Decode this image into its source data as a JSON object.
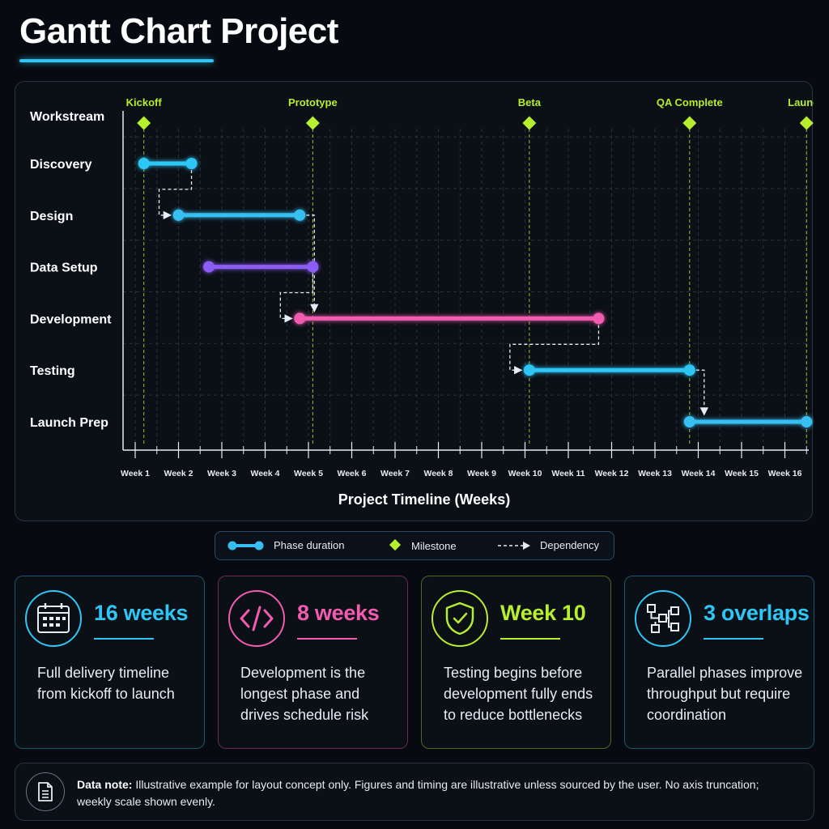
{
  "page": {
    "title": "Gantt Chart Project"
  },
  "colors": {
    "accent_cyan": "#2ec7f5",
    "accent_purple": "#8b5cf6",
    "accent_pink": "#f25bb0",
    "milestone_green": "#b7ef2f",
    "dependency_white": "#e6ecf3"
  },
  "chart_data": {
    "type": "gantt",
    "row_header": "Workstream",
    "xlabel": "Project Timeline (Weeks)",
    "x_ticks": [
      "Week 1",
      "Week 2",
      "Week 3",
      "Week 4",
      "Week 5",
      "Week 6",
      "Week 7",
      "Week 8",
      "Week 9",
      "Week 10",
      "Week 11",
      "Week 12",
      "Week 13",
      "Week 14",
      "Week 15",
      "Week 16"
    ],
    "xlim": [
      1,
      16
    ],
    "grid": true,
    "tasks": [
      {
        "name": "Discovery",
        "start": 1.2,
        "end": 2.3,
        "color": "#2ec7f5"
      },
      {
        "name": "Design",
        "start": 2.0,
        "end": 4.8,
        "color": "#37bff2"
      },
      {
        "name": "Data Setup",
        "start": 2.7,
        "end": 5.1,
        "color": "#8b5cf6"
      },
      {
        "name": "Development",
        "start": 4.8,
        "end": 11.7,
        "color": "#f25bb0"
      },
      {
        "name": "Testing",
        "start": 10.1,
        "end": 13.8,
        "color": "#2ec7f5"
      },
      {
        "name": "Launch Prep",
        "start": 13.8,
        "end": 16.5,
        "color": "#37bff2"
      }
    ],
    "milestones": [
      {
        "label": "Kickoff",
        "week": 1.2
      },
      {
        "label": "Prototype",
        "week": 5.1
      },
      {
        "label": "Beta",
        "week": 10.1
      },
      {
        "label": "QA Complete",
        "week": 13.8
      },
      {
        "label": "Launch",
        "week": 16.5
      }
    ],
    "dependencies": [
      {
        "from": "Discovery",
        "to": "Design"
      },
      {
        "from": "Design",
        "to": "Development"
      },
      {
        "from": "Data Setup",
        "to": "Development"
      },
      {
        "from": "Development",
        "to": "Testing"
      },
      {
        "from": "Testing",
        "to": "Launch Prep"
      }
    ]
  },
  "legend": {
    "phase": "Phase duration",
    "milestone": "Milestone",
    "dependency": "Dependency"
  },
  "cards": [
    {
      "metric": "16 weeks",
      "desc": "Full delivery timeline from kickoff to launch",
      "color": "#2ec7f5",
      "icon": "calendar-icon"
    },
    {
      "metric": "8 weeks",
      "desc": "Development is the longest phase and drives schedule risk",
      "color": "#f25bb0",
      "icon": "code-icon"
    },
    {
      "metric": "Week 10",
      "desc": "Testing begins before development fully ends to reduce bottlenecks",
      "color": "#b7ef2f",
      "icon": "shield-check-icon"
    },
    {
      "metric": "3 overlaps",
      "desc": "Parallel phases improve throughput but require coordination",
      "color": "#2ec7f5",
      "icon": "flowchart-icon"
    }
  ],
  "note": {
    "label": "Data note:",
    "text": " Illustrative example for layout concept only. Figures and timing are illustrative unless sourced by the user. No axis truncation; weekly scale shown evenly.",
    "icon": "document-icon"
  }
}
